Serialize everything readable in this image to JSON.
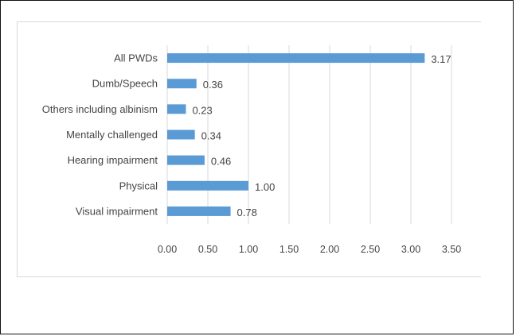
{
  "chart_data": {
    "type": "bar",
    "orientation": "horizontal",
    "categories": [
      "All PWDs",
      "Dumb/Speech",
      "Others including albinism",
      "Mentally challenged",
      "Hearing impairment",
      "Physical",
      "Visual impairment"
    ],
    "values": [
      3.17,
      0.36,
      0.23,
      0.34,
      0.46,
      1.0,
      0.78
    ],
    "value_labels": [
      "3.17",
      "0.36",
      "0.23",
      "0.34",
      "0.46",
      "1.00",
      "0.78"
    ],
    "x_ticks": [
      "0.00",
      "0.50",
      "1.00",
      "1.50",
      "2.00",
      "2.50",
      "3.00",
      "3.50"
    ],
    "xlim": [
      0,
      3.5
    ],
    "grid": "vertical",
    "bar_color": "#5b9bd5",
    "grid_color": "#d9d9d9",
    "title": "",
    "xlabel": "",
    "ylabel": ""
  }
}
